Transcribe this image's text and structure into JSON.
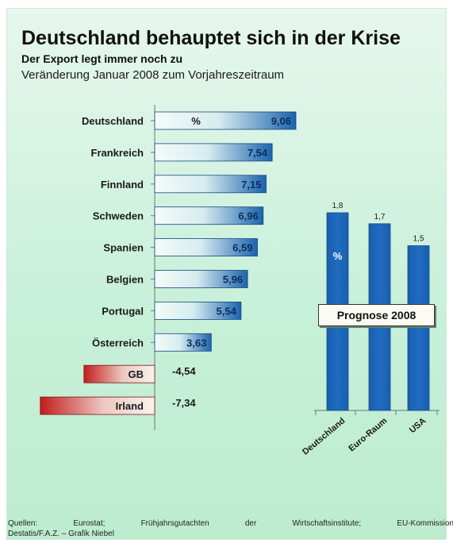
{
  "header": {
    "title": "Deutschland behauptet sich in der Krise",
    "subtitle": "Der Export legt immer noch zu",
    "subline": "Veränderung Januar 2008 zum Vorjahreszeitraum"
  },
  "source": {
    "line1": [
      "Quellen:",
      "Eurostat;",
      "Frühjahrsgutachten",
      "der",
      "Wirtschaftsinstitute;",
      "EU-Kommission"
    ],
    "line2": "Destatis/F.A.Z. – Grafik Niebel"
  },
  "colors": {
    "positive_bar_start": "#f4fbf7",
    "positive_bar_end": "#1c63ad",
    "negative_bar_start": "#c41c1c",
    "negative_bar_end": "#f8f2f0",
    "column_fill": "#1f6cc1"
  },
  "chart_data": [
    {
      "type": "bar",
      "orientation": "horizontal",
      "categories": [
        "Deutschland",
        "Frankreich",
        "Finnland",
        "Schweden",
        "Spanien",
        "Belgien",
        "Portugal",
        "Österreich",
        "GB",
        "Irland"
      ],
      "values": [
        9.06,
        7.54,
        7.15,
        6.96,
        6.59,
        5.96,
        5.54,
        3.63,
        -4.54,
        -7.34
      ],
      "value_labels": [
        "9,06",
        "7,54",
        "7,15",
        "6,96",
        "6,59",
        "5,96",
        "5,54",
        "3,63",
        "-4,54",
        "-7,34"
      ],
      "unit": "%",
      "xlim": [
        -7.34,
        9.06
      ],
      "grid": false
    },
    {
      "type": "bar",
      "title": "Prognose 2008",
      "categories": [
        "Deutschland",
        "Euro-Raum",
        "USA"
      ],
      "values": [
        1.8,
        1.7,
        1.5
      ],
      "value_labels": [
        "1,8",
        "1,7",
        "1,5"
      ],
      "unit": "%",
      "grid": false
    }
  ]
}
